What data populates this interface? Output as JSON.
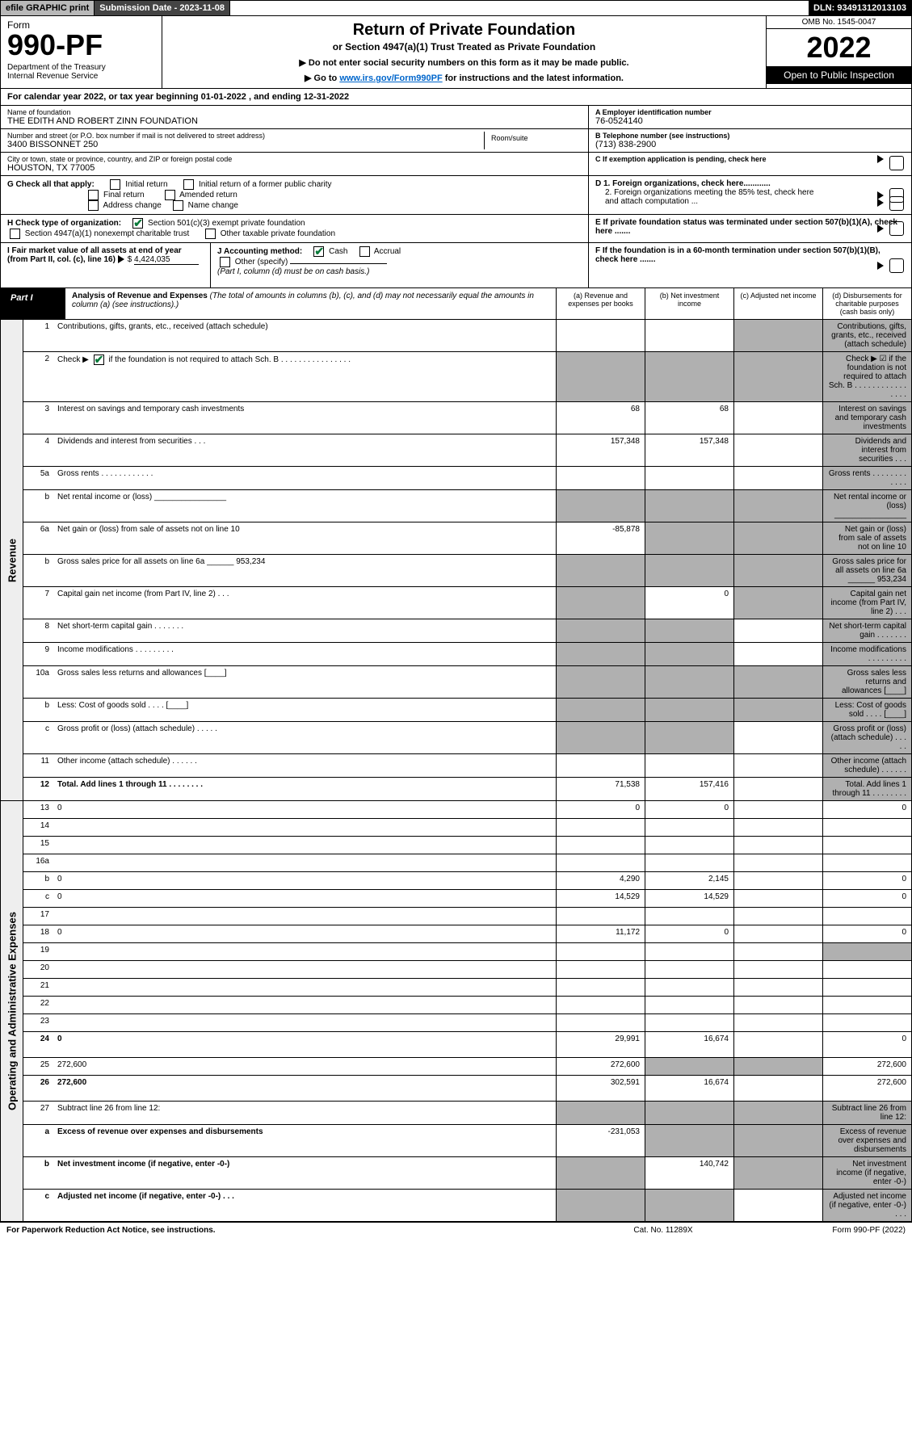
{
  "topbar": {
    "efile": "efile GRAPHIC print",
    "submission": "Submission Date - 2023-11-08",
    "dln": "DLN: 93491312013103"
  },
  "header": {
    "form_word": "Form",
    "form_num": "990-PF",
    "dept": "Department of the Treasury\nInternal Revenue Service",
    "title": "Return of Private Foundation",
    "subtitle": "or Section 4947(a)(1) Trust Treated as Private Foundation",
    "note1": "▶ Do not enter social security numbers on this form as it may be made public.",
    "note2_pre": "▶ Go to ",
    "note2_link": "www.irs.gov/Form990PF",
    "note2_post": " for instructions and the latest information.",
    "omb": "OMB No. 1545-0047",
    "year": "2022",
    "open": "Open to Public Inspection"
  },
  "calyear": "For calendar year 2022, or tax year beginning 01-01-2022                    , and ending 12-31-2022",
  "entity": {
    "name_lbl": "Name of foundation",
    "name": "THE EDITH AND ROBERT ZINN FOUNDATION",
    "addr_lbl": "Number and street (or P.O. box number if mail is not delivered to street address)",
    "addr": "3400 BISSONNET 250",
    "room_lbl": "Room/suite",
    "city_lbl": "City or town, state or province, country, and ZIP or foreign postal code",
    "city": "HOUSTON, TX  77005",
    "a_lbl": "A Employer identification number",
    "a_val": "76-0524140",
    "b_lbl": "B Telephone number (see instructions)",
    "b_val": "(713) 838-2900",
    "c_lbl": "C If exemption application is pending, check here"
  },
  "g": {
    "label": "G Check all that apply:",
    "opts": [
      "Initial return",
      "Initial return of a former public charity",
      "Final return",
      "Amended return",
      "Address change",
      "Name change"
    ]
  },
  "d": {
    "d1": "D 1. Foreign organizations, check here............",
    "d2": "2. Foreign organizations meeting the 85% test, check here and attach computation ..."
  },
  "h": {
    "label": "H Check type of organization:",
    "o1": "Section 501(c)(3) exempt private foundation",
    "o2": "Section 4947(a)(1) nonexempt charitable trust",
    "o3": "Other taxable private foundation"
  },
  "e": "E If private foundation status was terminated under section 507(b)(1)(A), check here .......",
  "i": {
    "label": "I Fair market value of all assets at end of year (from Part II, col. (c), line 16)",
    "val": "4,424,035"
  },
  "j": {
    "label": "J Accounting method:",
    "cash": "Cash",
    "accrual": "Accrual",
    "other": "Other (specify)",
    "note": "(Part I, column (d) must be on cash basis.)"
  },
  "f": "F If the foundation is in a 60-month termination under section 507(b)(1)(B), check here .......",
  "part1": {
    "label": "Part I",
    "title": "Analysis of Revenue and Expenses",
    "sub": "(The total of amounts in columns (b), (c), and (d) may not necessarily equal the amounts in column (a) (see instructions).)",
    "cols": [
      "(a)  Revenue and expenses per books",
      "(b)  Net investment income",
      "(c)  Adjusted net income",
      "(d)  Disbursements for charitable purposes (cash basis only)"
    ]
  },
  "revenue_label": "Revenue",
  "expenses_label": "Operating and Administrative Expenses",
  "rows_rev": [
    {
      "n": "1",
      "d": "Contributions, gifts, grants, etc., received (attach schedule)",
      "a": "",
      "b": "",
      "cs": true,
      "ds": true,
      "tall": true
    },
    {
      "n": "2",
      "d": "Check ▶ ☑ if the foundation is not required to attach Sch. B   .  .  .  .  .  .  .  .  .  .  .  .  .  .  .  .",
      "a": "",
      "b": "",
      "as": true,
      "bs": true,
      "cs": true,
      "ds": true,
      "tall": true,
      "check": true
    },
    {
      "n": "3",
      "d": "Interest on savings and temporary cash investments",
      "a": "68",
      "b": "68",
      "cs": false,
      "ds": true
    },
    {
      "n": "4",
      "d": "Dividends and interest from securities    .   .   .",
      "a": "157,348",
      "b": "157,348",
      "cs": false,
      "ds": true
    },
    {
      "n": "5a",
      "d": "Gross rents   .   .   .   .   .   .   .   .   .   .   .   .",
      "a": "",
      "b": "",
      "cs": false,
      "ds": true
    },
    {
      "n": "b",
      "d": "Net rental income or (loss)  ________________",
      "a": "",
      "b": "",
      "as": true,
      "bs": true,
      "cs": true,
      "ds": true
    },
    {
      "n": "6a",
      "d": "Net gain or (loss) from sale of assets not on line 10",
      "a": "-85,878",
      "b": "",
      "bs": true,
      "cs": true,
      "ds": true
    },
    {
      "n": "b",
      "d": "Gross sales price for all assets on line 6a ______ 953,234",
      "a": "",
      "b": "",
      "as": true,
      "bs": true,
      "cs": true,
      "ds": true,
      "inline": true
    },
    {
      "n": "7",
      "d": "Capital gain net income (from Part IV, line 2)   .   .   .",
      "a": "",
      "b": "0",
      "as": true,
      "cs": true,
      "ds": true
    },
    {
      "n": "8",
      "d": "Net short-term capital gain   .   .   .   .   .   .   .",
      "a": "",
      "b": "",
      "as": true,
      "bs": true,
      "ds": true
    },
    {
      "n": "9",
      "d": "Income modifications  .   .   .   .   .   .   .   .   .",
      "a": "",
      "b": "",
      "as": true,
      "bs": true,
      "ds": true
    },
    {
      "n": "10a",
      "d": "Gross sales less returns and allowances  [____]",
      "a": "",
      "b": "",
      "as": true,
      "bs": true,
      "cs": true,
      "ds": true
    },
    {
      "n": "b",
      "d": "Less: Cost of goods sold   .   .   .   .   [____]",
      "a": "",
      "b": "",
      "as": true,
      "bs": true,
      "cs": true,
      "ds": true
    },
    {
      "n": "c",
      "d": "Gross profit or (loss) (attach schedule)   .   .   .   .   .",
      "a": "",
      "b": "",
      "as": true,
      "bs": true,
      "ds": true
    },
    {
      "n": "11",
      "d": "Other income (attach schedule)   .   .   .   .   .   .",
      "a": "",
      "b": "",
      "cs": false,
      "ds": true
    },
    {
      "n": "12",
      "d": "Total. Add lines 1 through 11   .  .  .  .  .  .  .  .",
      "a": "71,538",
      "b": "157,416",
      "cs": false,
      "ds": true,
      "bold": true
    }
  ],
  "rows_exp": [
    {
      "n": "13",
      "d": "0",
      "a": "0",
      "b": "0",
      "c": ""
    },
    {
      "n": "14",
      "d": "",
      "a": "",
      "b": "",
      "c": ""
    },
    {
      "n": "15",
      "d": "",
      "a": "",
      "b": "",
      "c": ""
    },
    {
      "n": "16a",
      "d": "",
      "a": "",
      "b": "",
      "c": ""
    },
    {
      "n": "b",
      "d": "0",
      "a": "4,290",
      "b": "2,145",
      "c": ""
    },
    {
      "n": "c",
      "d": "0",
      "a": "14,529",
      "b": "14,529",
      "c": ""
    },
    {
      "n": "17",
      "d": "",
      "a": "",
      "b": "",
      "c": ""
    },
    {
      "n": "18",
      "d": "0",
      "a": "11,172",
      "b": "0",
      "c": ""
    },
    {
      "n": "19",
      "d": "",
      "a": "",
      "b": "",
      "c": "",
      "ds": true
    },
    {
      "n": "20",
      "d": "",
      "a": "",
      "b": "",
      "c": ""
    },
    {
      "n": "21",
      "d": "",
      "a": "",
      "b": "",
      "c": ""
    },
    {
      "n": "22",
      "d": "",
      "a": "",
      "b": "",
      "c": ""
    },
    {
      "n": "23",
      "d": "",
      "a": "",
      "b": "",
      "c": ""
    },
    {
      "n": "24",
      "d": "0",
      "a": "29,991",
      "b": "16,674",
      "c": "",
      "bold": true,
      "tall": true
    },
    {
      "n": "25",
      "d": "272,600",
      "a": "272,600",
      "b": "",
      "bs": true,
      "cs": true
    },
    {
      "n": "26",
      "d": "272,600",
      "a": "302,591",
      "b": "16,674",
      "c": "",
      "bold": true,
      "tall": true
    },
    {
      "n": "27",
      "d": "Subtract line 26 from line 12:",
      "a": "",
      "b": "",
      "as": true,
      "bs": true,
      "cs": true,
      "ds": true
    },
    {
      "n": "a",
      "d": "Excess of revenue over expenses and disbursements",
      "a": "-231,053",
      "b": "",
      "bs": true,
      "cs": true,
      "ds": true,
      "bold": true,
      "tall": true
    },
    {
      "n": "b",
      "d": "Net investment income (if negative, enter -0-)",
      "a": "",
      "as": true,
      "b": "140,742",
      "cs": true,
      "ds": true,
      "bold": true
    },
    {
      "n": "c",
      "d": "Adjusted net income (if negative, enter -0-)   .   .   .",
      "a": "",
      "as": true,
      "b": "",
      "bs": true,
      "c": "",
      "ds": true,
      "bold": true
    }
  ],
  "footer": {
    "l": "For Paperwork Reduction Act Notice, see instructions.",
    "c": "Cat. No. 11289X",
    "r": "Form 990-PF (2022)"
  }
}
